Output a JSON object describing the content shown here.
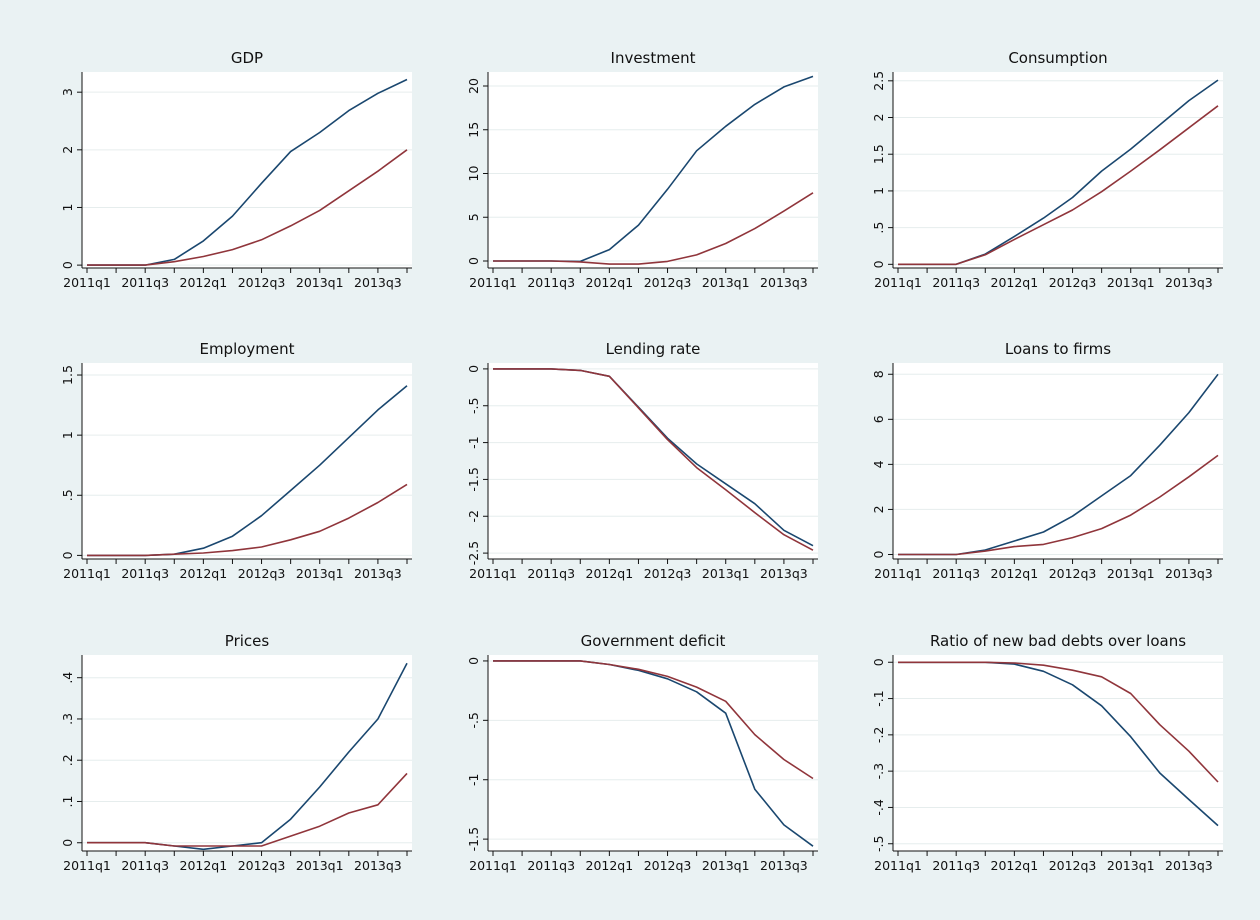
{
  "chart_data": [
    {
      "type": "line",
      "title": "GDP",
      "x": [
        "2011q1",
        "2011q2",
        "2011q3",
        "2011q4",
        "2012q1",
        "2012q2",
        "2012q3",
        "2012q4",
        "2013q1",
        "2013q2",
        "2013q3",
        "2013q4"
      ],
      "x_tick_labels": [
        "2011q1",
        "2011q3",
        "2012q1",
        "2012q3",
        "2013q1",
        "2013q3"
      ],
      "y_ticks": [
        0,
        1,
        2,
        3
      ],
      "y_tick_labels": [
        "0",
        "1",
        "2",
        "3"
      ],
      "ylim": [
        -0.05,
        3.35
      ],
      "grid": true,
      "series": [
        {
          "color": "#1a476f",
          "values": [
            0,
            0,
            0,
            0.1,
            0.42,
            0.85,
            1.42,
            1.97,
            2.3,
            2.68,
            2.98,
            3.22
          ]
        },
        {
          "color": "#90353b",
          "values": [
            0,
            0,
            0,
            0.06,
            0.15,
            0.27,
            0.44,
            0.68,
            0.95,
            1.29,
            1.63,
            2.0
          ]
        }
      ]
    },
    {
      "type": "line",
      "title": "Investment",
      "x": [
        "2011q1",
        "2011q2",
        "2011q3",
        "2011q4",
        "2012q1",
        "2012q2",
        "2012q3",
        "2012q4",
        "2013q1",
        "2013q2",
        "2013q3",
        "2013q4"
      ],
      "x_tick_labels": [
        "2011q1",
        "2011q3",
        "2012q1",
        "2012q3",
        "2013q1",
        "2013q3"
      ],
      "y_ticks": [
        0,
        5,
        10,
        15,
        20
      ],
      "y_tick_labels": [
        "0",
        "5",
        "10",
        "15",
        "20"
      ],
      "ylim": [
        -0.8,
        21.6
      ],
      "grid": true,
      "series": [
        {
          "color": "#1a476f",
          "values": [
            0,
            0,
            0,
            -0.05,
            1.3,
            4.1,
            8.2,
            12.6,
            15.4,
            17.9,
            19.9,
            21.1
          ]
        },
        {
          "color": "#90353b",
          "values": [
            0,
            0,
            0,
            -0.1,
            -0.35,
            -0.35,
            -0.05,
            0.7,
            2.0,
            3.7,
            5.7,
            7.8
          ]
        }
      ]
    },
    {
      "type": "line",
      "title": "Consumption",
      "x": [
        "2011q1",
        "2011q2",
        "2011q3",
        "2011q4",
        "2012q1",
        "2012q2",
        "2012q3",
        "2012q4",
        "2013q1",
        "2013q2",
        "2013q3",
        "2013q4"
      ],
      "x_tick_labels": [
        "2011q1",
        "2011q3",
        "2012q1",
        "2012q3",
        "2013q1",
        "2013q3"
      ],
      "y_ticks": [
        0,
        0.5,
        1,
        1.5,
        2,
        2.5
      ],
      "y_tick_labels": [
        "0",
        ".5",
        "1",
        "1.5",
        "2",
        "2.5"
      ],
      "ylim": [
        -0.05,
        2.62
      ],
      "grid": true,
      "series": [
        {
          "color": "#1a476f",
          "values": [
            0,
            0,
            0,
            0.14,
            0.38,
            0.63,
            0.91,
            1.27,
            1.57,
            1.9,
            2.23,
            2.51
          ]
        },
        {
          "color": "#90353b",
          "values": [
            0,
            0,
            0,
            0.13,
            0.34,
            0.54,
            0.74,
            0.99,
            1.27,
            1.56,
            1.86,
            2.16
          ]
        }
      ]
    },
    {
      "type": "line",
      "title": "Employment",
      "x": [
        "2011q1",
        "2011q2",
        "2011q3",
        "2011q4",
        "2012q1",
        "2012q2",
        "2012q3",
        "2012q4",
        "2013q1",
        "2013q2",
        "2013q3",
        "2013q4"
      ],
      "x_tick_labels": [
        "2011q1",
        "2011q3",
        "2012q1",
        "2012q3",
        "2013q1",
        "2013q3"
      ],
      "y_ticks": [
        0,
        0.5,
        1,
        1.5
      ],
      "y_tick_labels": [
        "0",
        ".5",
        "1",
        "1.5"
      ],
      "ylim": [
        -0.03,
        1.6
      ],
      "grid": true,
      "series": [
        {
          "color": "#1a476f",
          "values": [
            0,
            0,
            0,
            0.01,
            0.06,
            0.16,
            0.33,
            0.54,
            0.75,
            0.98,
            1.21,
            1.41
          ]
        },
        {
          "color": "#90353b",
          "values": [
            0,
            0,
            0,
            0.01,
            0.02,
            0.04,
            0.07,
            0.13,
            0.2,
            0.31,
            0.44,
            0.59
          ]
        }
      ]
    },
    {
      "type": "line",
      "title": "Lending rate",
      "x": [
        "2011q1",
        "2011q2",
        "2011q3",
        "2011q4",
        "2012q1",
        "2012q2",
        "2012q3",
        "2012q4",
        "2013q1",
        "2013q2",
        "2013q3",
        "2013q4"
      ],
      "x_tick_labels": [
        "2011q1",
        "2011q3",
        "2012q1",
        "2012q3",
        "2013q1",
        "2013q3"
      ],
      "y_ticks": [
        0,
        -0.5,
        -1,
        -1.5,
        -2,
        -2.5
      ],
      "y_tick_labels": [
        "0",
        "-.5",
        "-1",
        "-1.5",
        "-2",
        "-2.5"
      ],
      "ylim": [
        -2.58,
        0.08
      ],
      "grid": true,
      "series": [
        {
          "color": "#1a476f",
          "values": [
            0,
            0,
            0,
            -0.02,
            -0.1,
            -0.52,
            -0.94,
            -1.29,
            -1.56,
            -1.83,
            -2.19,
            -2.4
          ]
        },
        {
          "color": "#90353b",
          "values": [
            0,
            0,
            0,
            -0.02,
            -0.1,
            -0.53,
            -0.96,
            -1.34,
            -1.64,
            -1.95,
            -2.25,
            -2.46
          ]
        }
      ]
    },
    {
      "type": "line",
      "title": "Loans to firms",
      "x": [
        "2011q1",
        "2011q2",
        "2011q3",
        "2011q4",
        "2012q1",
        "2012q2",
        "2012q3",
        "2012q4",
        "2013q1",
        "2013q2",
        "2013q3",
        "2013q4"
      ],
      "x_tick_labels": [
        "2011q1",
        "2011q3",
        "2012q1",
        "2012q3",
        "2013q1",
        "2013q3"
      ],
      "y_ticks": [
        0,
        2,
        4,
        6,
        8
      ],
      "y_tick_labels": [
        "0",
        "2",
        "4",
        "6",
        "8"
      ],
      "ylim": [
        -0.2,
        8.5
      ],
      "grid": true,
      "series": [
        {
          "color": "#1a476f",
          "values": [
            0,
            0,
            0,
            0.2,
            0.6,
            1.0,
            1.7,
            2.6,
            3.5,
            4.85,
            6.3,
            8.0
          ]
        },
        {
          "color": "#90353b",
          "values": [
            0,
            0,
            0,
            0.15,
            0.35,
            0.45,
            0.75,
            1.15,
            1.75,
            2.55,
            3.45,
            4.4
          ]
        }
      ]
    },
    {
      "type": "line",
      "title": "Prices",
      "x": [
        "2011q1",
        "2011q2",
        "2011q3",
        "2011q4",
        "2012q1",
        "2012q2",
        "2012q3",
        "2012q4",
        "2013q1",
        "2013q2",
        "2013q3",
        "2013q4"
      ],
      "x_tick_labels": [
        "2011q1",
        "2011q3",
        "2012q1",
        "2012q3",
        "2013q1",
        "2013q3"
      ],
      "y_ticks": [
        0,
        0.1,
        0.2,
        0.3,
        0.4
      ],
      "y_tick_labels": [
        "0",
        ".1",
        ".2",
        ".3",
        ".4"
      ],
      "ylim": [
        -0.02,
        0.455
      ],
      "grid": true,
      "series": [
        {
          "color": "#1a476f",
          "values": [
            0,
            0,
            0,
            -0.008,
            -0.016,
            -0.008,
            0,
            0.057,
            0.135,
            0.22,
            0.3,
            0.435
          ]
        },
        {
          "color": "#90353b",
          "values": [
            0,
            0,
            0,
            -0.008,
            -0.008,
            -0.008,
            -0.008,
            0.016,
            0.04,
            0.072,
            0.092,
            0.168
          ]
        }
      ]
    },
    {
      "type": "line",
      "title": "Government deficit",
      "x": [
        "2011q1",
        "2011q2",
        "2011q3",
        "2011q4",
        "2012q1",
        "2012q2",
        "2012q3",
        "2012q4",
        "2013q1",
        "2013q2",
        "2013q3",
        "2013q4"
      ],
      "x_tick_labels": [
        "2011q1",
        "2011q3",
        "2012q1",
        "2012q3",
        "2013q1",
        "2013q3"
      ],
      "y_ticks": [
        0,
        -0.5,
        -1,
        -1.5
      ],
      "y_tick_labels": [
        "0",
        "-.5",
        "-1",
        "-1.5"
      ],
      "ylim": [
        -1.6,
        0.05
      ],
      "grid": true,
      "series": [
        {
          "color": "#1a476f",
          "values": [
            0,
            0,
            0,
            0,
            -0.03,
            -0.08,
            -0.15,
            -0.26,
            -0.44,
            -1.08,
            -1.38,
            -1.56
          ]
        },
        {
          "color": "#90353b",
          "values": [
            0,
            0,
            0,
            0,
            -0.03,
            -0.07,
            -0.13,
            -0.22,
            -0.34,
            -0.62,
            -0.83,
            -0.99
          ]
        }
      ]
    },
    {
      "type": "line",
      "title": "Ratio of new bad debts over loans",
      "x": [
        "2011q1",
        "2011q2",
        "2011q3",
        "2011q4",
        "2012q1",
        "2012q2",
        "2012q3",
        "2012q4",
        "2013q1",
        "2013q2",
        "2013q3",
        "2013q4"
      ],
      "x_tick_labels": [
        "2011q1",
        "2011q3",
        "2012q1",
        "2012q3",
        "2013q1",
        "2013q3"
      ],
      "y_ticks": [
        0,
        -0.1,
        -0.2,
        -0.3,
        -0.4,
        -0.5
      ],
      "y_tick_labels": [
        "0",
        "-.1",
        "-.2",
        "-.3",
        "-.4",
        "-.5"
      ],
      "ylim": [
        -0.52,
        0.02
      ],
      "grid": true,
      "series": [
        {
          "color": "#1a476f",
          "values": [
            0,
            0,
            0,
            0,
            -0.005,
            -0.025,
            -0.062,
            -0.12,
            -0.205,
            -0.305,
            -0.378,
            -0.45
          ]
        },
        {
          "color": "#90353b",
          "values": [
            0,
            0,
            0,
            0,
            -0.002,
            -0.008,
            -0.022,
            -0.04,
            -0.086,
            -0.172,
            -0.245,
            -0.33
          ]
        }
      ]
    }
  ]
}
